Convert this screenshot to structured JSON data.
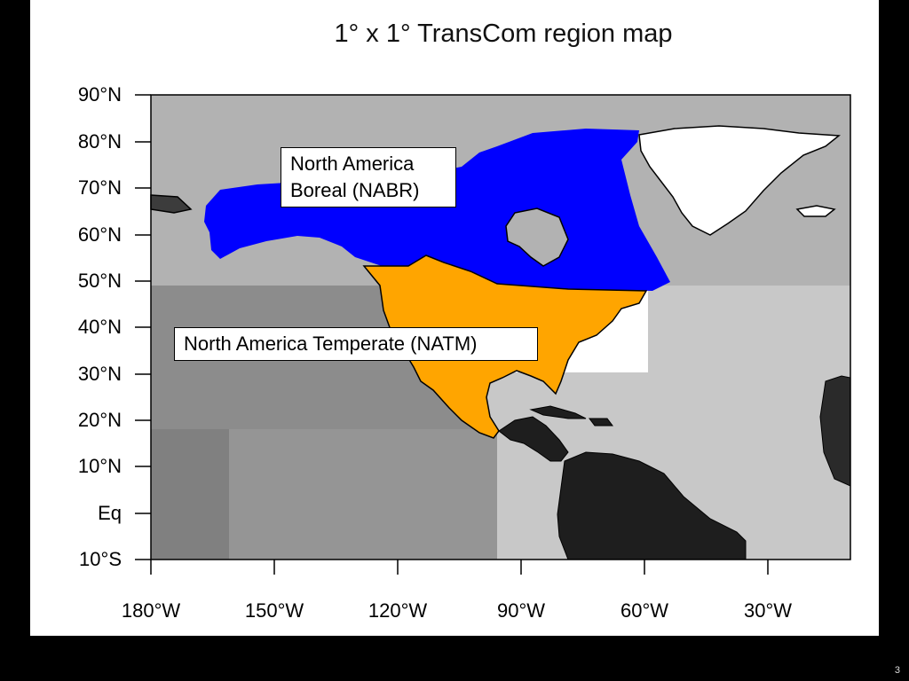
{
  "title": "1° x 1° TransCom region map",
  "lat_ticks": [
    "90°N",
    "80°N",
    "70°N",
    "60°N",
    "50°N",
    "40°N",
    "30°N",
    "20°N",
    "10°N",
    "Eq",
    "10°S"
  ],
  "lon_ticks": [
    "180°W",
    "150°W",
    "120°W",
    "90°W",
    "60°W",
    "30°W"
  ],
  "regions": {
    "nabr": {
      "label_line1": "North America",
      "label_line2": "Boreal (NABR)",
      "color": "#0000ff"
    },
    "natm": {
      "label": "North America Temperate (NATM)",
      "color": "#ffa500"
    }
  },
  "colors": {
    "greenland": "#ffffff",
    "south_america": "#1e1e1e",
    "ocean_north_pacific": "#b2b2b2",
    "ocean_south_pacific": "#8c8c8c",
    "ocean_atlantic": "#c8c8c8"
  },
  "page_number": "3"
}
